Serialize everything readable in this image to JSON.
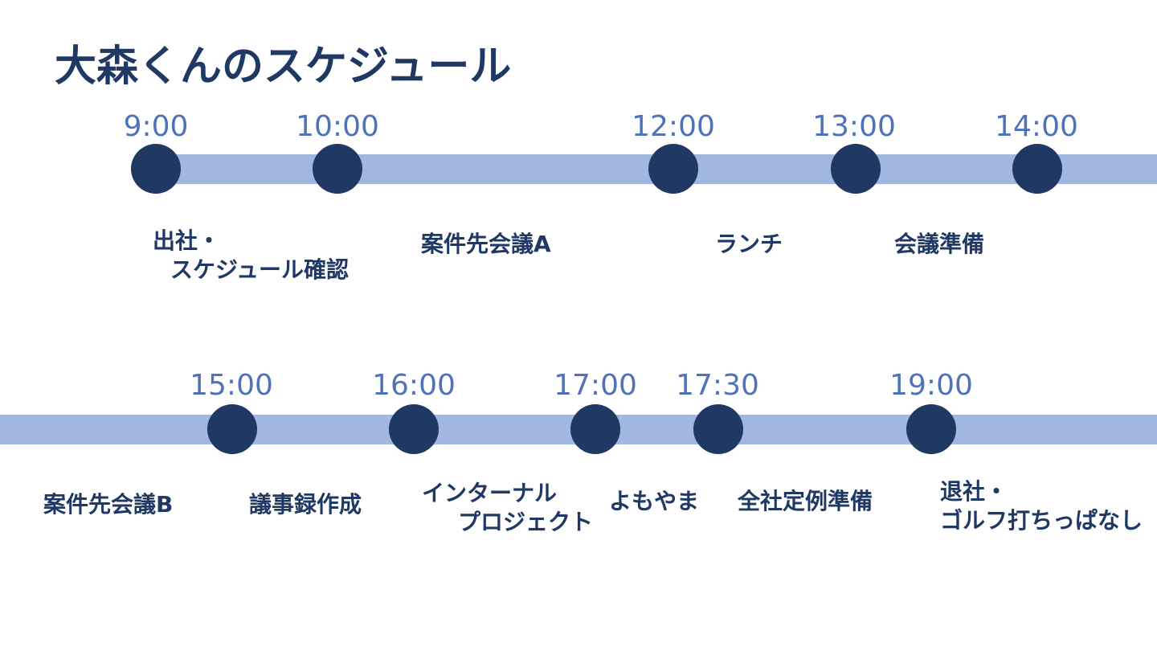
{
  "title": "大森くんのスケジュール",
  "row1": {
    "items": [
      {
        "time": "9:00",
        "lines": [
          "出社・",
          "スケジュール確認"
        ]
      },
      {
        "time": "10:00",
        "lines": [
          "案件先会議A"
        ]
      },
      {
        "time": "12:00",
        "lines": [
          "ランチ"
        ]
      },
      {
        "time": "13:00",
        "lines": [
          "会議準備"
        ]
      },
      {
        "time": "14:00",
        "lines": []
      }
    ]
  },
  "row2": {
    "items": [
      {
        "time": "15:00",
        "lines": [
          "案件先会議B"
        ]
      },
      {
        "time": "16:00",
        "lines": [
          "議事録作成"
        ]
      },
      {
        "time": "17:00",
        "lines": [
          "インターナル",
          "プロジェクト"
        ]
      },
      {
        "time": "17:30",
        "lines": [
          "よもやま"
        ]
      },
      {
        "time": "19:00",
        "lines": [
          "全社定例準備"
        ]
      },
      {
        "time": "",
        "lines": [
          "退社・",
          "ゴルフ打ちっぱなし"
        ]
      }
    ]
  },
  "colors": {
    "title": "#1f3864",
    "track": "#a2b7e0",
    "dot": "#1f3864",
    "time": "#4f72b8",
    "event": "#1f3864"
  }
}
